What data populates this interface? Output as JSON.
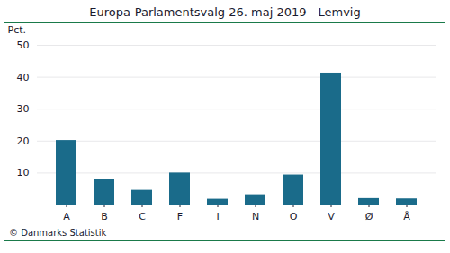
{
  "chart_data": {
    "type": "bar",
    "title": "Europa-Parlamentsvalg 26. maj 2019 - Lemvig",
    "categories": [
      "A",
      "B",
      "C",
      "F",
      "I",
      "N",
      "O",
      "V",
      "Ø",
      "Å"
    ],
    "values": [
      20.2,
      7.9,
      4.6,
      10.0,
      1.8,
      3.2,
      9.4,
      41.3,
      2.0,
      1.9
    ],
    "color": "#1a6b8a",
    "ylabel": "Pct.",
    "ylim": [
      0,
      50
    ],
    "yticks": [
      {
        "value": 0,
        "label": null
      },
      10,
      20,
      30,
      40,
      50
    ],
    "grid": true,
    "caption": "© Danmarks Statistik"
  }
}
